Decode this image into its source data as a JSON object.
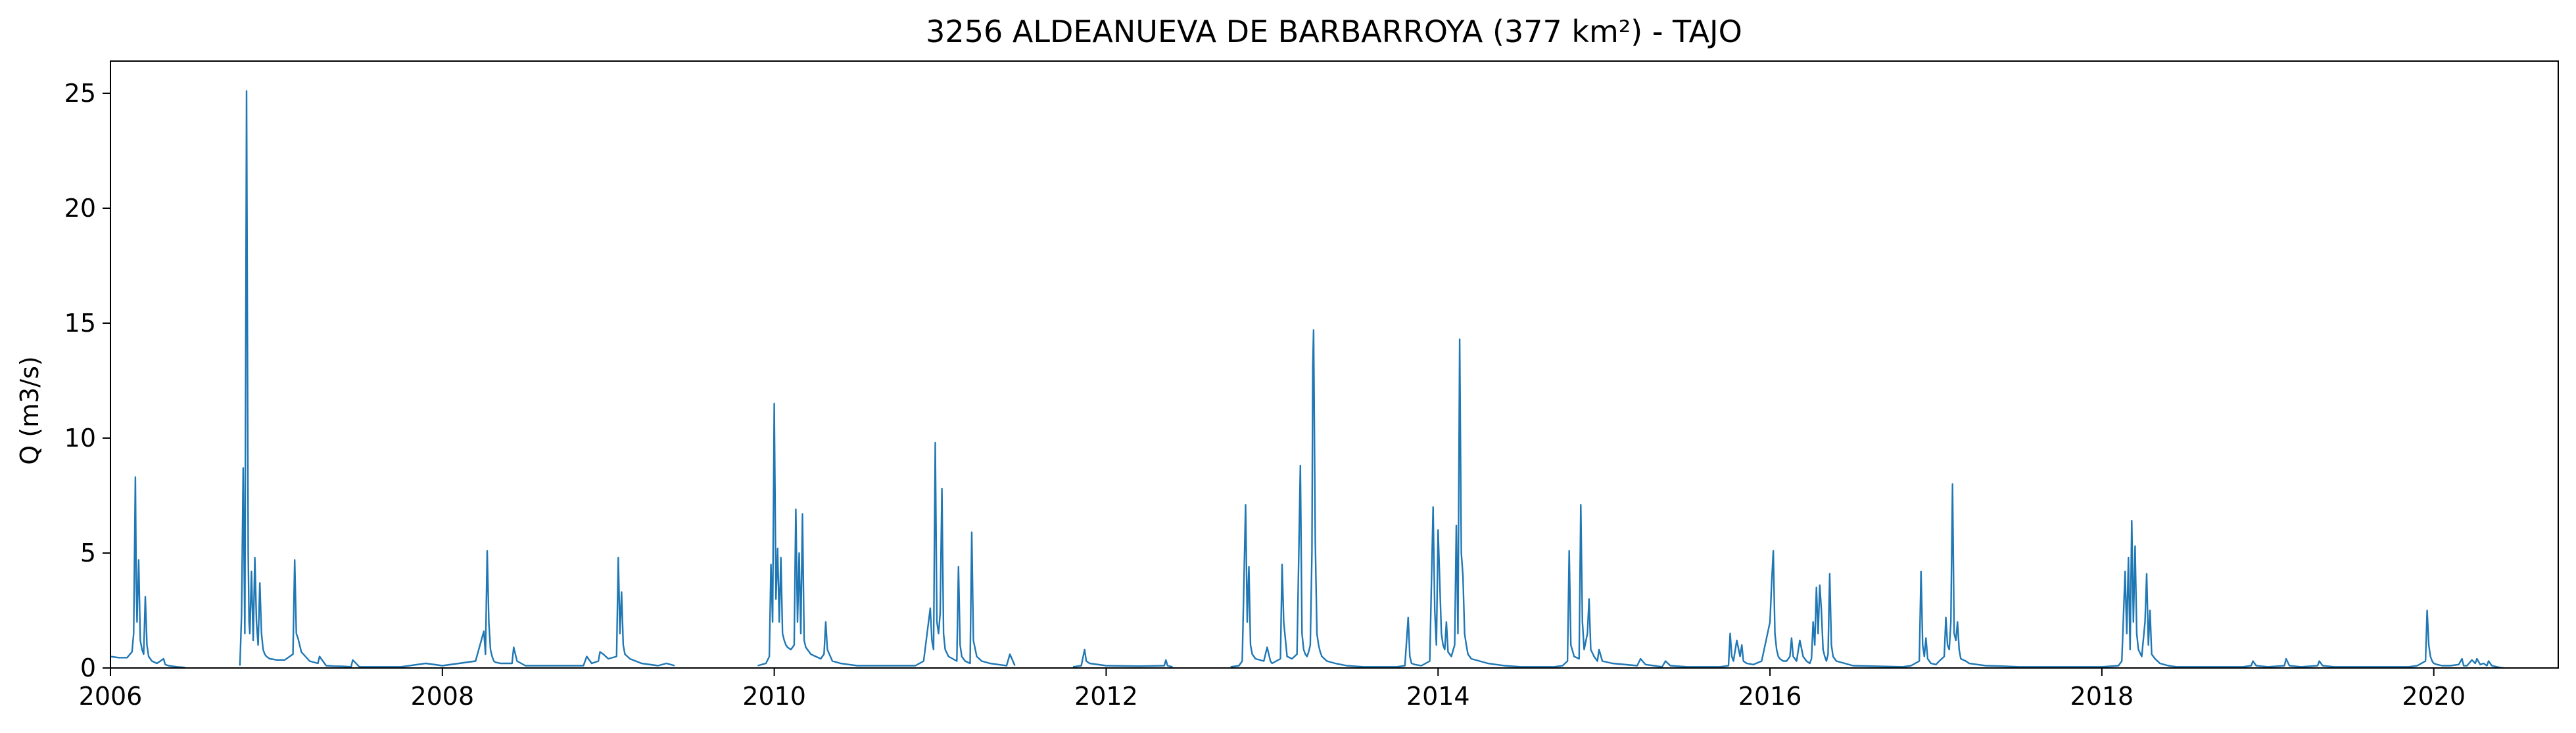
{
  "chart_data": {
    "type": "line",
    "title": "3256 ALDEANUEVA DE BARBARROYA (377 km²) - TAJO",
    "xlabel": "",
    "ylabel": "Q (m3/s)",
    "xlim": [
      2006.0,
      2020.75
    ],
    "ylim": [
      0,
      26.4
    ],
    "grid": false,
    "line_color": "#1f77b4",
    "x_ticks": [
      2006,
      2008,
      2010,
      2012,
      2014,
      2016,
      2018,
      2020
    ],
    "x_tick_labels": [
      "2006",
      "2008",
      "2010",
      "2012",
      "2014",
      "2016",
      "2018",
      "2020"
    ],
    "y_ticks": [
      0,
      5,
      10,
      15,
      20,
      25
    ],
    "y_tick_labels": [
      "0",
      "5",
      "10",
      "15",
      "20",
      "25"
    ],
    "series": [
      {
        "x": [
          2006.0,
          2006.05,
          2006.1,
          2006.13,
          2006.14,
          2006.15,
          2006.155,
          2006.16,
          2006.17,
          2006.18,
          2006.19,
          2006.2,
          2006.21,
          2006.22,
          2006.23,
          2006.25,
          2006.28,
          2006.32,
          2006.33,
          2006.35,
          2006.4,
          2006.45,
          2006.5,
          2006.78,
          2006.79,
          2006.8,
          2006.81,
          2006.82,
          2006.83,
          2006.835,
          2006.84,
          2006.85,
          2006.86,
          2006.87,
          2006.88,
          2006.89,
          2006.9,
          2006.91,
          2006.92,
          2006.93,
          2006.94,
          2006.95,
          2006.96,
          2006.98,
          2007.0,
          2007.05,
          2007.1,
          2007.11,
          2007.12,
          2007.13,
          2007.15,
          2007.2,
          2007.25,
          2007.26,
          2007.3,
          2007.35,
          2007.4,
          2007.45,
          2007.46,
          2007.5,
          2007.75,
          2007.9,
          2008.0,
          2008.1,
          2008.2,
          2008.25,
          2008.26,
          2008.27,
          2008.28,
          2008.29,
          2008.3,
          2008.31,
          2008.32,
          2008.35,
          2008.42,
          2008.43,
          2008.45,
          2008.5,
          2008.85,
          2008.87,
          2008.9,
          2008.94,
          2008.95,
          2008.97,
          2009.0,
          2009.05,
          2009.06,
          2009.07,
          2009.08,
          2009.09,
          2009.1,
          2009.13,
          2009.2,
          2009.3,
          2009.35,
          2009.4,
          2009.5,
          2009.9,
          2009.95,
          2009.97,
          2009.98,
          2009.99,
          2010.0,
          2010.01,
          2010.02,
          2010.03,
          2010.04,
          2010.05,
          2010.06,
          2010.07,
          2010.08,
          2010.1,
          2010.12,
          2010.13,
          2010.14,
          2010.15,
          2010.16,
          2010.17,
          2010.18,
          2010.19,
          2010.2,
          2010.22,
          2010.25,
          2010.28,
          2010.3,
          2010.31,
          2010.32,
          2010.35,
          2010.4,
          2010.45,
          2010.5,
          2010.85,
          2010.9,
          2010.94,
          2010.95,
          2010.96,
          2010.97,
          2010.98,
          2010.99,
          2011.0,
          2011.01,
          2011.02,
          2011.03,
          2011.05,
          2011.1,
          2011.11,
          2011.12,
          2011.13,
          2011.15,
          2011.18,
          2011.19,
          2011.2,
          2011.22,
          2011.25,
          2011.3,
          2011.35,
          2011.4,
          2011.42,
          2011.45,
          2011.5,
          2011.8,
          2011.85,
          2011.87,
          2011.88,
          2011.9,
          2012.0,
          2012.2,
          2012.35,
          2012.36,
          2012.37,
          2012.4,
          2012.5,
          2012.75,
          2012.8,
          2012.82,
          2012.84,
          2012.85,
          2012.86,
          2012.87,
          2012.88,
          2012.89,
          2012.9,
          2012.95,
          2012.97,
          2012.99,
          2013.0,
          2013.05,
          2013.06,
          2013.07,
          2013.09,
          2013.12,
          2013.15,
          2013.17,
          2013.18,
          2013.19,
          2013.2,
          2013.21,
          2013.22,
          2013.23,
          2013.24,
          2013.245,
          2013.25,
          2013.26,
          2013.27,
          2013.28,
          2013.29,
          2013.3,
          2013.33,
          2013.38,
          2013.45,
          2013.55,
          2013.75,
          2013.8,
          2013.82,
          2013.83,
          2013.84,
          2013.86,
          2013.9,
          2013.95,
          2013.97,
          2013.98,
          2013.99,
          2014.0,
          2014.02,
          2014.03,
          2014.04,
          2014.05,
          2014.06,
          2014.08,
          2014.1,
          2014.11,
          2014.12,
          2014.13,
          2014.14,
          2014.15,
          2014.16,
          2014.17,
          2014.18,
          2014.2,
          2014.25,
          2014.3,
          2014.35,
          2014.4,
          2014.5,
          2014.7,
          2014.75,
          2014.78,
          2014.79,
          2014.8,
          2014.82,
          2014.85,
          2014.86,
          2014.87,
          2014.88,
          2014.9,
          2014.91,
          2014.92,
          2014.94,
          2014.96,
          2014.97,
          2014.99,
          2015.05,
          2015.2,
          2015.22,
          2015.25,
          2015.3,
          2015.35,
          2015.37,
          2015.4,
          2015.5,
          2015.7,
          2015.75,
          2015.76,
          2015.77,
          2015.78,
          2015.8,
          2015.82,
          2015.83,
          2015.84,
          2015.86,
          2015.9,
          2015.95,
          2016.0,
          2016.01,
          2016.02,
          2016.03,
          2016.04,
          2016.05,
          2016.06,
          2016.08,
          2016.1,
          2016.12,
          2016.13,
          2016.14,
          2016.16,
          2016.18,
          2016.2,
          2016.22,
          2016.24,
          2016.25,
          2016.26,
          2016.27,
          2016.28,
          2016.29,
          2016.3,
          2016.31,
          2016.32,
          2016.33,
          2016.34,
          2016.35,
          2016.36,
          2016.37,
          2016.38,
          2016.4,
          2016.45,
          2016.5,
          2016.8,
          2016.85,
          2016.9,
          2016.91,
          2016.92,
          2016.93,
          2016.94,
          2016.95,
          2016.97,
          2017.0,
          2017.02,
          2017.05,
          2017.06,
          2017.07,
          2017.08,
          2017.09,
          2017.1,
          2017.11,
          2017.12,
          2017.13,
          2017.14,
          2017.15,
          2017.18,
          2017.2,
          2017.25,
          2017.3,
          2017.4,
          2017.5,
          2017.8,
          2018.0,
          2018.1,
          2018.12,
          2018.14,
          2018.15,
          2018.16,
          2018.17,
          2018.18,
          2018.19,
          2018.2,
          2018.21,
          2018.22,
          2018.24,
          2018.26,
          2018.27,
          2018.28,
          2018.29,
          2018.3,
          2018.32,
          2018.35,
          2018.4,
          2018.45,
          2018.5,
          2018.85,
          2018.9,
          2018.91,
          2018.93,
          2019.0,
          2019.1,
          2019.11,
          2019.13,
          2019.2,
          2019.3,
          2019.31,
          2019.33,
          2019.4,
          2019.85,
          2019.9,
          2019.95,
          2019.96,
          2019.97,
          2019.98,
          2019.99,
          2020.0,
          2020.02,
          2020.05,
          2020.1,
          2020.15,
          2020.17,
          2020.18,
          2020.2,
          2020.23,
          2020.25,
          2020.26,
          2020.28,
          2020.3,
          2020.32,
          2020.33,
          2020.35,
          2020.38,
          2020.4,
          2020.42
        ],
        "y": [
          0.5,
          0.45,
          0.45,
          0.7,
          1.5,
          8.3,
          4.0,
          2.0,
          4.7,
          1.2,
          0.8,
          0.6,
          3.1,
          1.0,
          0.5,
          0.3,
          0.2,
          0.4,
          0.15,
          0.1,
          0.05,
          0.02,
          null,
          0.1,
          2.3,
          8.7,
          1.5,
          25.1,
          5.0,
          2.0,
          1.5,
          4.2,
          1.2,
          4.8,
          2.0,
          1.0,
          3.7,
          1.5,
          0.8,
          0.6,
          0.5,
          0.45,
          0.4,
          0.38,
          0.35,
          0.35,
          0.6,
          4.7,
          1.5,
          1.3,
          0.7,
          0.3,
          0.2,
          0.5,
          0.1,
          0.08,
          0.07,
          0.05,
          0.35,
          0.05,
          0.05,
          0.2,
          0.1,
          0.2,
          0.3,
          1.6,
          0.6,
          5.1,
          2.0,
          0.8,
          0.5,
          0.3,
          0.25,
          0.2,
          0.2,
          0.9,
          0.3,
          0.1,
          0.1,
          0.5,
          0.2,
          0.3,
          0.7,
          0.6,
          0.4,
          0.5,
          4.8,
          1.5,
          3.3,
          1.0,
          0.6,
          0.4,
          0.2,
          0.1,
          0.2,
          0.1,
          null,
          0.1,
          0.2,
          0.5,
          4.5,
          2.0,
          11.5,
          3.0,
          5.2,
          2.0,
          4.8,
          1.5,
          1.2,
          1.0,
          0.9,
          0.8,
          1.0,
          6.9,
          2.0,
          5.0,
          1.5,
          6.7,
          1.2,
          0.9,
          0.8,
          0.6,
          0.5,
          0.4,
          0.6,
          2.0,
          0.8,
          0.3,
          0.2,
          0.15,
          0.1,
          0.1,
          0.3,
          2.6,
          1.2,
          0.8,
          9.8,
          2.0,
          1.5,
          2.4,
          7.8,
          1.5,
          0.8,
          0.5,
          0.3,
          4.4,
          1.0,
          0.5,
          0.3,
          0.2,
          5.9,
          1.2,
          0.5,
          0.3,
          0.2,
          0.15,
          0.1,
          0.6,
          0.1,
          null,
          0.05,
          0.1,
          0.8,
          0.3,
          0.2,
          0.1,
          0.08,
          0.1,
          0.35,
          0.1,
          0.05,
          null,
          0.05,
          0.1,
          0.3,
          7.1,
          2.0,
          4.4,
          1.0,
          0.6,
          0.5,
          0.4,
          0.3,
          0.9,
          0.3,
          0.2,
          0.4,
          4.5,
          2.0,
          0.5,
          0.4,
          0.6,
          8.8,
          1.5,
          0.8,
          0.6,
          0.5,
          0.7,
          1.0,
          5.0,
          13.1,
          14.7,
          5.5,
          1.5,
          1.0,
          0.7,
          0.5,
          0.3,
          0.2,
          0.1,
          0.05,
          0.05,
          0.1,
          2.2,
          0.5,
          0.2,
          0.15,
          0.1,
          0.3,
          7.0,
          2.5,
          1.0,
          6.0,
          1.5,
          1.0,
          0.8,
          2.0,
          0.7,
          0.5,
          1.0,
          6.2,
          1.5,
          14.3,
          5.0,
          4.0,
          1.5,
          1.0,
          0.6,
          0.4,
          0.3,
          0.2,
          0.15,
          0.1,
          0.05,
          0.05,
          0.1,
          0.3,
          5.1,
          1.0,
          0.5,
          0.4,
          7.1,
          2.0,
          0.8,
          1.5,
          3.0,
          0.8,
          0.5,
          0.3,
          0.8,
          0.3,
          0.2,
          0.1,
          0.4,
          0.15,
          0.1,
          0.05,
          0.3,
          0.1,
          0.05,
          0.05,
          0.1,
          1.5,
          0.5,
          0.3,
          1.2,
          0.5,
          1.0,
          0.3,
          0.2,
          0.15,
          0.3,
          2.0,
          3.7,
          5.1,
          1.5,
          0.8,
          0.5,
          0.4,
          0.3,
          0.3,
          0.5,
          1.3,
          0.5,
          0.3,
          1.2,
          0.5,
          0.3,
          0.2,
          0.4,
          2.0,
          1.0,
          3.5,
          1.5,
          3.6,
          2.5,
          0.8,
          0.5,
          0.3,
          0.6,
          4.1,
          1.0,
          0.5,
          0.3,
          0.2,
          0.1,
          0.05,
          0.1,
          0.3,
          4.2,
          1.0,
          0.5,
          1.3,
          0.4,
          0.2,
          0.15,
          0.3,
          0.5,
          2.2,
          1.0,
          0.8,
          2.0,
          8.0,
          1.5,
          1.2,
          2.0,
          0.8,
          0.4,
          0.3,
          0.2,
          0.15,
          0.1,
          0.08,
          0.05,
          0.05,
          0.05,
          0.1,
          0.3,
          4.2,
          1.5,
          4.8,
          0.8,
          6.4,
          2.0,
          5.3,
          1.5,
          0.8,
          0.5,
          2.0,
          4.1,
          1.0,
          2.5,
          0.6,
          0.4,
          0.2,
          0.1,
          0.05,
          0.05,
          0.05,
          0.1,
          0.3,
          0.1,
          0.05,
          0.1,
          0.4,
          0.1,
          0.05,
          0.1,
          0.3,
          0.1,
          0.05,
          0.05,
          0.1,
          0.3,
          2.5,
          1.0,
          0.5,
          0.3,
          0.2,
          0.15,
          0.1,
          0.1,
          0.15,
          0.4,
          0.1,
          0.1,
          0.35,
          0.2,
          0.4,
          0.15,
          0.2,
          0.1,
          0.3,
          0.1,
          0.05,
          0.02,
          0.0
        ]
      }
    ]
  }
}
